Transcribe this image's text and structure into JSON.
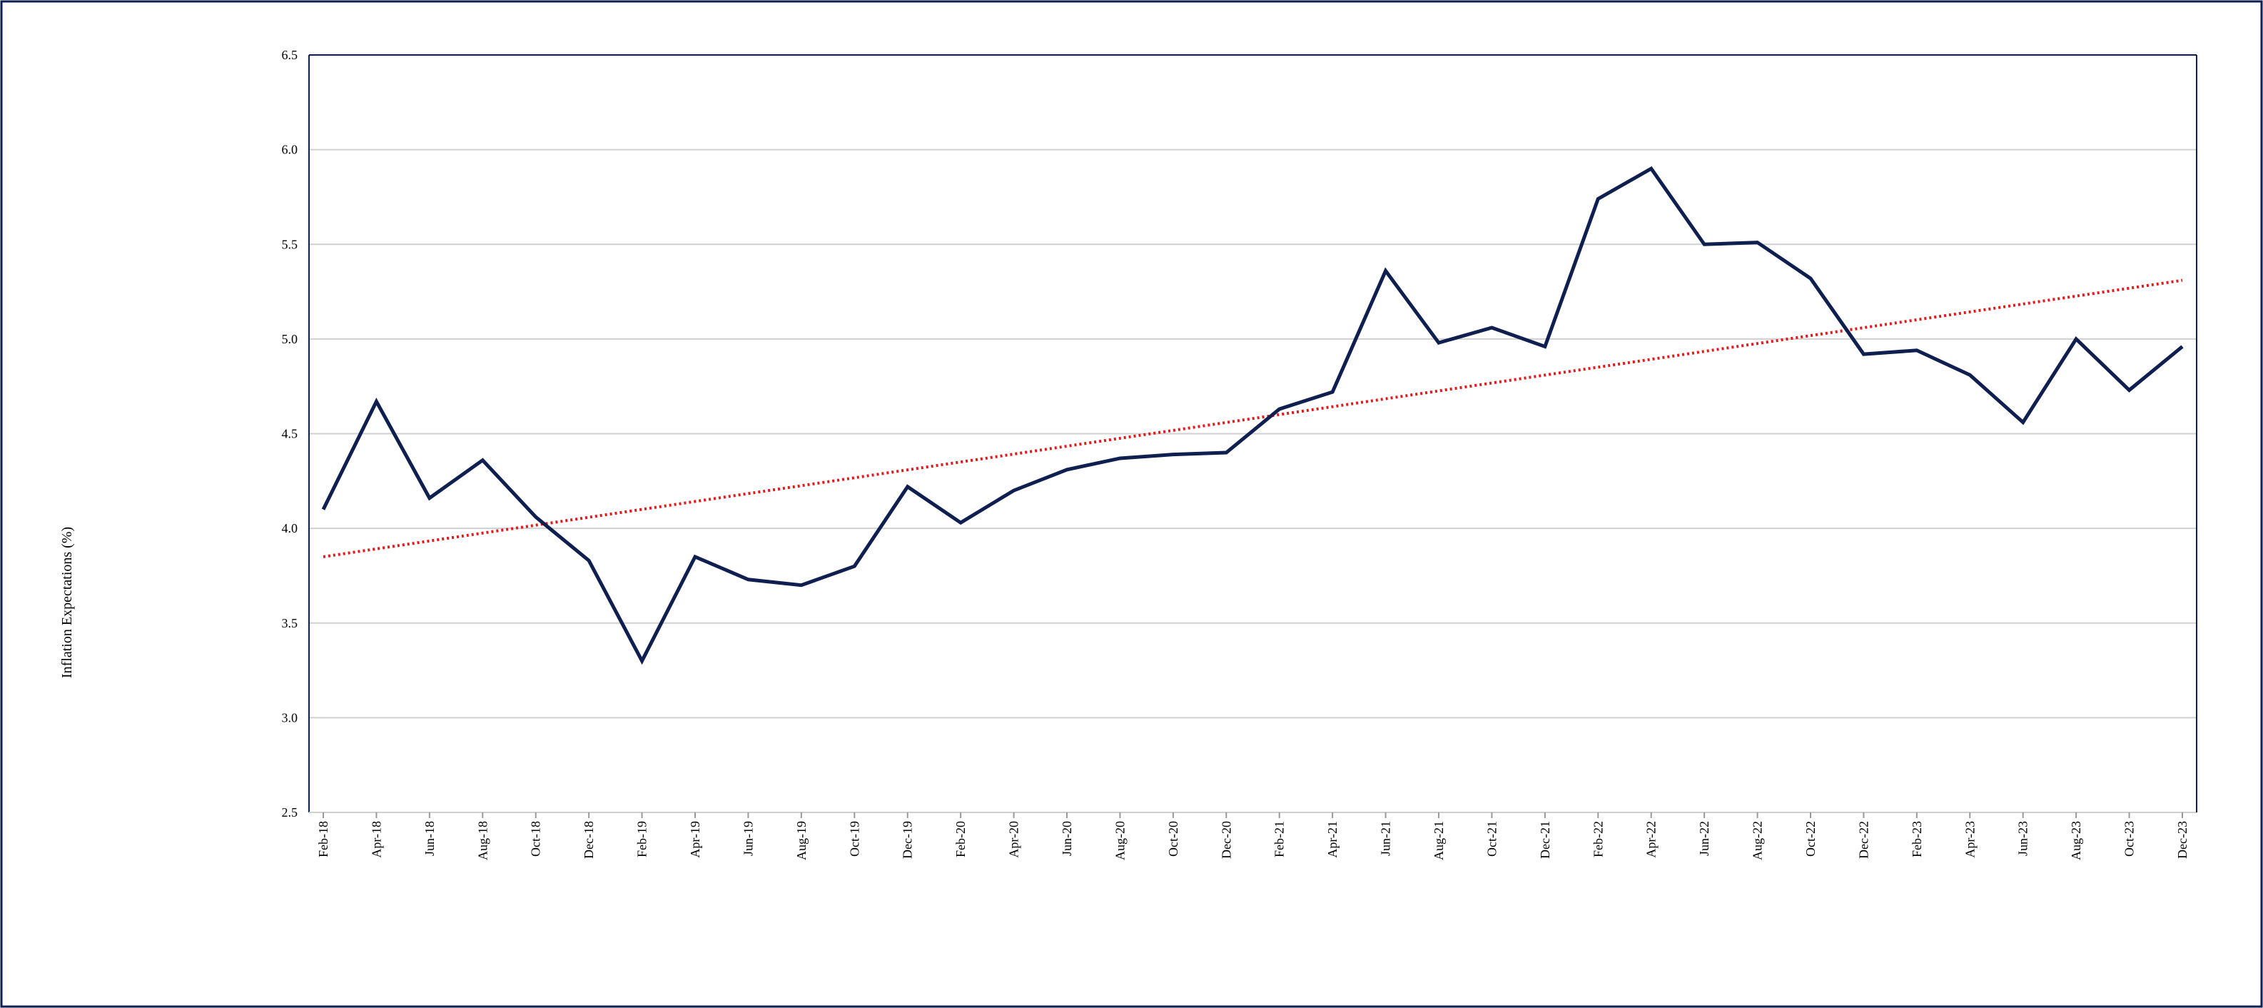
{
  "chart_data": {
    "type": "line",
    "y_label": "Inflation Expectations (%)",
    "categories": [
      "Feb-18",
      "Apr-18",
      "Jun-18",
      "Aug-18",
      "Oct-18",
      "Dec-18",
      "Feb-19",
      "Apr-19",
      "Jun-19",
      "Aug-19",
      "Oct-19",
      "Dec-19",
      "Feb-20",
      "Apr-20",
      "Jun-20",
      "Aug-20",
      "Oct-20",
      "Dec-20",
      "Feb-21",
      "Apr-21",
      "Jun-21",
      "Aug-21",
      "Oct-21",
      "Dec-21",
      "Feb-22",
      "Apr-22",
      "Jun-22",
      "Aug-22",
      "Oct-22",
      "Dec-22",
      "Feb-23",
      "Apr-23",
      "Jun-23",
      "Aug-23",
      "Oct-23",
      "Dec-23"
    ],
    "values": [
      4.1,
      4.67,
      4.16,
      4.36,
      4.06,
      3.83,
      3.3,
      3.85,
      3.73,
      3.7,
      3.8,
      4.22,
      4.03,
      4.2,
      4.31,
      4.37,
      4.39,
      4.4,
      4.63,
      4.72,
      5.36,
      4.98,
      5.06,
      4.96,
      5.74,
      5.9,
      5.5,
      5.51,
      5.32,
      4.92,
      4.94,
      4.81,
      4.56,
      5.0,
      4.73,
      4.96
    ],
    "color": "#0f1f4f",
    "trendline": {
      "color": "#e31a1c",
      "start": 3.85,
      "end": 5.31
    },
    "ylim": [
      2.5,
      6.5
    ],
    "yticks": [
      2.5,
      {
        "value": 3,
        "label": "3.0"
      },
      3.5,
      {
        "value": 4,
        "label": "4.0"
      },
      4.5,
      {
        "value": 5,
        "label": "5.0"
      },
      5.5,
      {
        "value": 6,
        "label": "6.0"
      },
      6.5
    ],
    "grid": true
  }
}
